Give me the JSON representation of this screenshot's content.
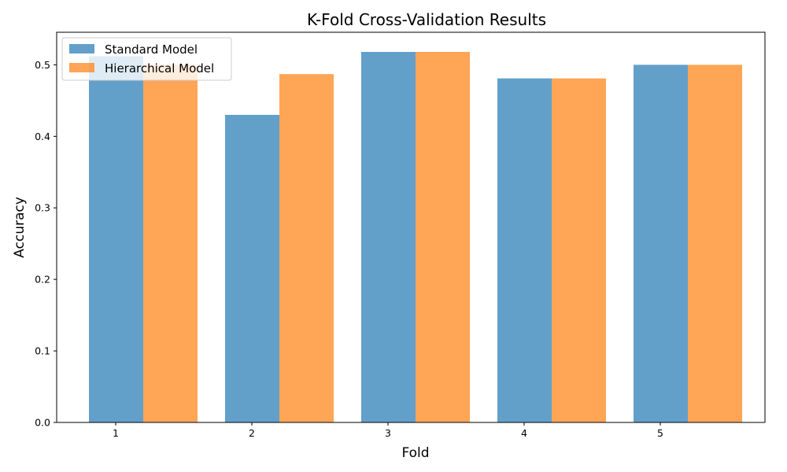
{
  "chart_data": {
    "type": "bar",
    "title": "K-Fold Cross-Validation Results",
    "xlabel": "Fold",
    "ylabel": "Accuracy",
    "categories": [
      "1",
      "2",
      "3",
      "4",
      "5"
    ],
    "series": [
      {
        "name": "Standard Model",
        "values": [
          0.512,
          0.43,
          0.518,
          0.481,
          0.5
        ],
        "color": "#1f77b4"
      },
      {
        "name": "Hierarchical Model",
        "values": [
          0.5,
          0.487,
          0.518,
          0.481,
          0.5
        ],
        "color": "#ff7f0e"
      }
    ],
    "ylim": [
      0,
      0.5455
    ],
    "yticks": [
      0.0,
      0.1,
      0.2,
      0.3,
      0.4,
      0.5
    ],
    "ytick_labels": [
      "0.0",
      "0.1",
      "0.2",
      "0.3",
      "0.4",
      "0.5"
    ],
    "bar_opacity": 0.7,
    "grid": false,
    "legend_position": "upper-left"
  }
}
